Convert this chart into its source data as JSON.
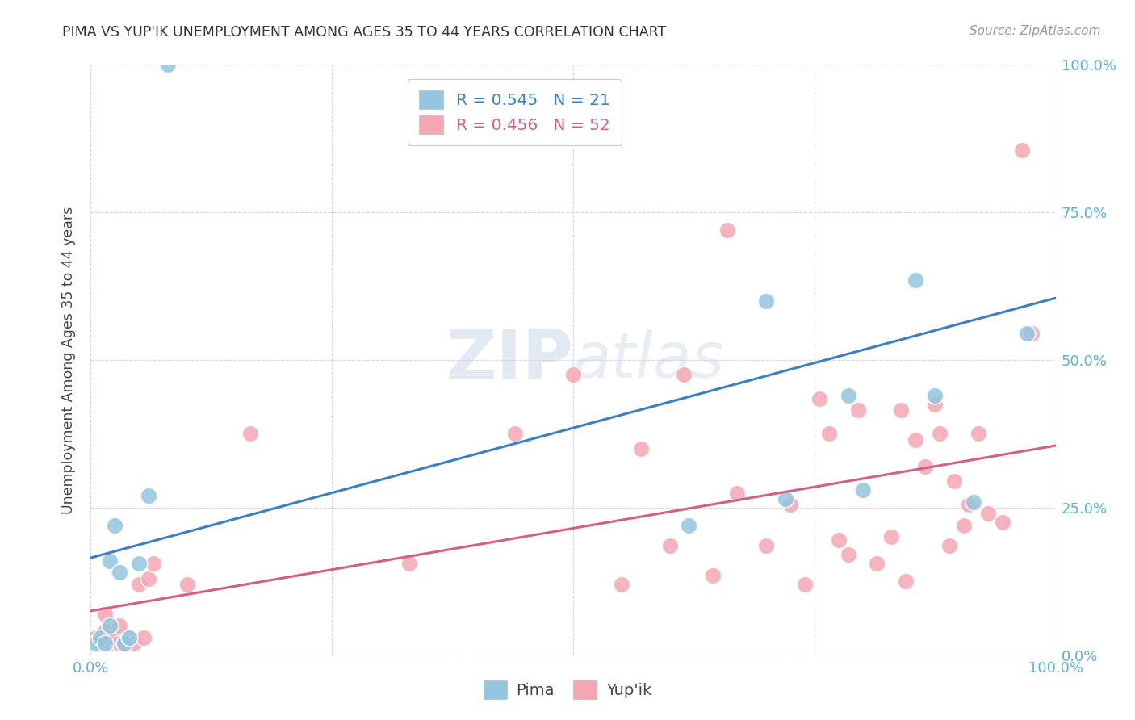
{
  "title": "PIMA VS YUP'IK UNEMPLOYMENT AMONG AGES 35 TO 44 YEARS CORRELATION CHART",
  "source": "Source: ZipAtlas.com",
  "ylabel": "Unemployment Among Ages 35 to 44 years",
  "tick_labels": [
    "0.0%",
    "25.0%",
    "50.0%",
    "75.0%",
    "100.0%"
  ],
  "x_show_labels": [
    "0.0%",
    "100.0%"
  ],
  "legend_pima": "Pima",
  "legend_yupik": "Yup'ik",
  "R_pima": 0.545,
  "N_pima": 21,
  "R_yupik": 0.456,
  "N_yupik": 52,
  "pima_color": "#92c5de",
  "pima_edge_color": "#92c5de",
  "yupik_color": "#f4a7b2",
  "yupik_edge_color": "#f4a7b2",
  "pima_line_color": "#3a7ec6",
  "yupik_line_color": "#d45f82",
  "tick_color": "#5bb0d8",
  "watermark_color": "#ccd8e8",
  "grid_color": "#d5d5d5",
  "pima_x": [
    0.005,
    0.01,
    0.015,
    0.02,
    0.02,
    0.025,
    0.03,
    0.035,
    0.04,
    0.05,
    0.06,
    0.08,
    0.62,
    0.7,
    0.72,
    0.785,
    0.8,
    0.855,
    0.875,
    0.915,
    0.97
  ],
  "pima_y": [
    0.02,
    0.03,
    0.02,
    0.05,
    0.16,
    0.22,
    0.14,
    0.02,
    0.03,
    0.155,
    0.27,
    1.0,
    0.22,
    0.6,
    0.265,
    0.44,
    0.28,
    0.635,
    0.44,
    0.26,
    0.545
  ],
  "yupik_x": [
    0.005,
    0.01,
    0.015,
    0.015,
    0.02,
    0.025,
    0.03,
    0.03,
    0.035,
    0.04,
    0.045,
    0.05,
    0.055,
    0.06,
    0.065,
    0.1,
    0.165,
    0.33,
    0.44,
    0.5,
    0.55,
    0.57,
    0.6,
    0.615,
    0.645,
    0.66,
    0.67,
    0.7,
    0.725,
    0.74,
    0.755,
    0.765,
    0.775,
    0.785,
    0.795,
    0.815,
    0.83,
    0.84,
    0.845,
    0.855,
    0.865,
    0.875,
    0.88,
    0.89,
    0.895,
    0.905,
    0.91,
    0.92,
    0.93,
    0.945,
    0.965,
    0.975
  ],
  "yupik_y": [
    0.03,
    0.02,
    0.04,
    0.07,
    0.02,
    0.03,
    0.02,
    0.05,
    0.02,
    0.03,
    0.02,
    0.12,
    0.03,
    0.13,
    0.155,
    0.12,
    0.375,
    0.155,
    0.375,
    0.475,
    0.12,
    0.35,
    0.185,
    0.475,
    0.135,
    0.72,
    0.275,
    0.185,
    0.255,
    0.12,
    0.435,
    0.375,
    0.195,
    0.17,
    0.415,
    0.155,
    0.2,
    0.415,
    0.125,
    0.365,
    0.32,
    0.425,
    0.375,
    0.185,
    0.295,
    0.22,
    0.255,
    0.375,
    0.24,
    0.225,
    0.855,
    0.545
  ],
  "pima_line_x0": 0.0,
  "pima_line_x1": 1.0,
  "pima_line_y0": 0.165,
  "pima_line_y1": 0.605,
  "yupik_line_x0": 0.0,
  "yupik_line_x1": 1.0,
  "yupik_line_y0": 0.075,
  "yupik_line_y1": 0.355,
  "xlim": [
    0.0,
    1.0
  ],
  "ylim": [
    0.0,
    1.0
  ]
}
